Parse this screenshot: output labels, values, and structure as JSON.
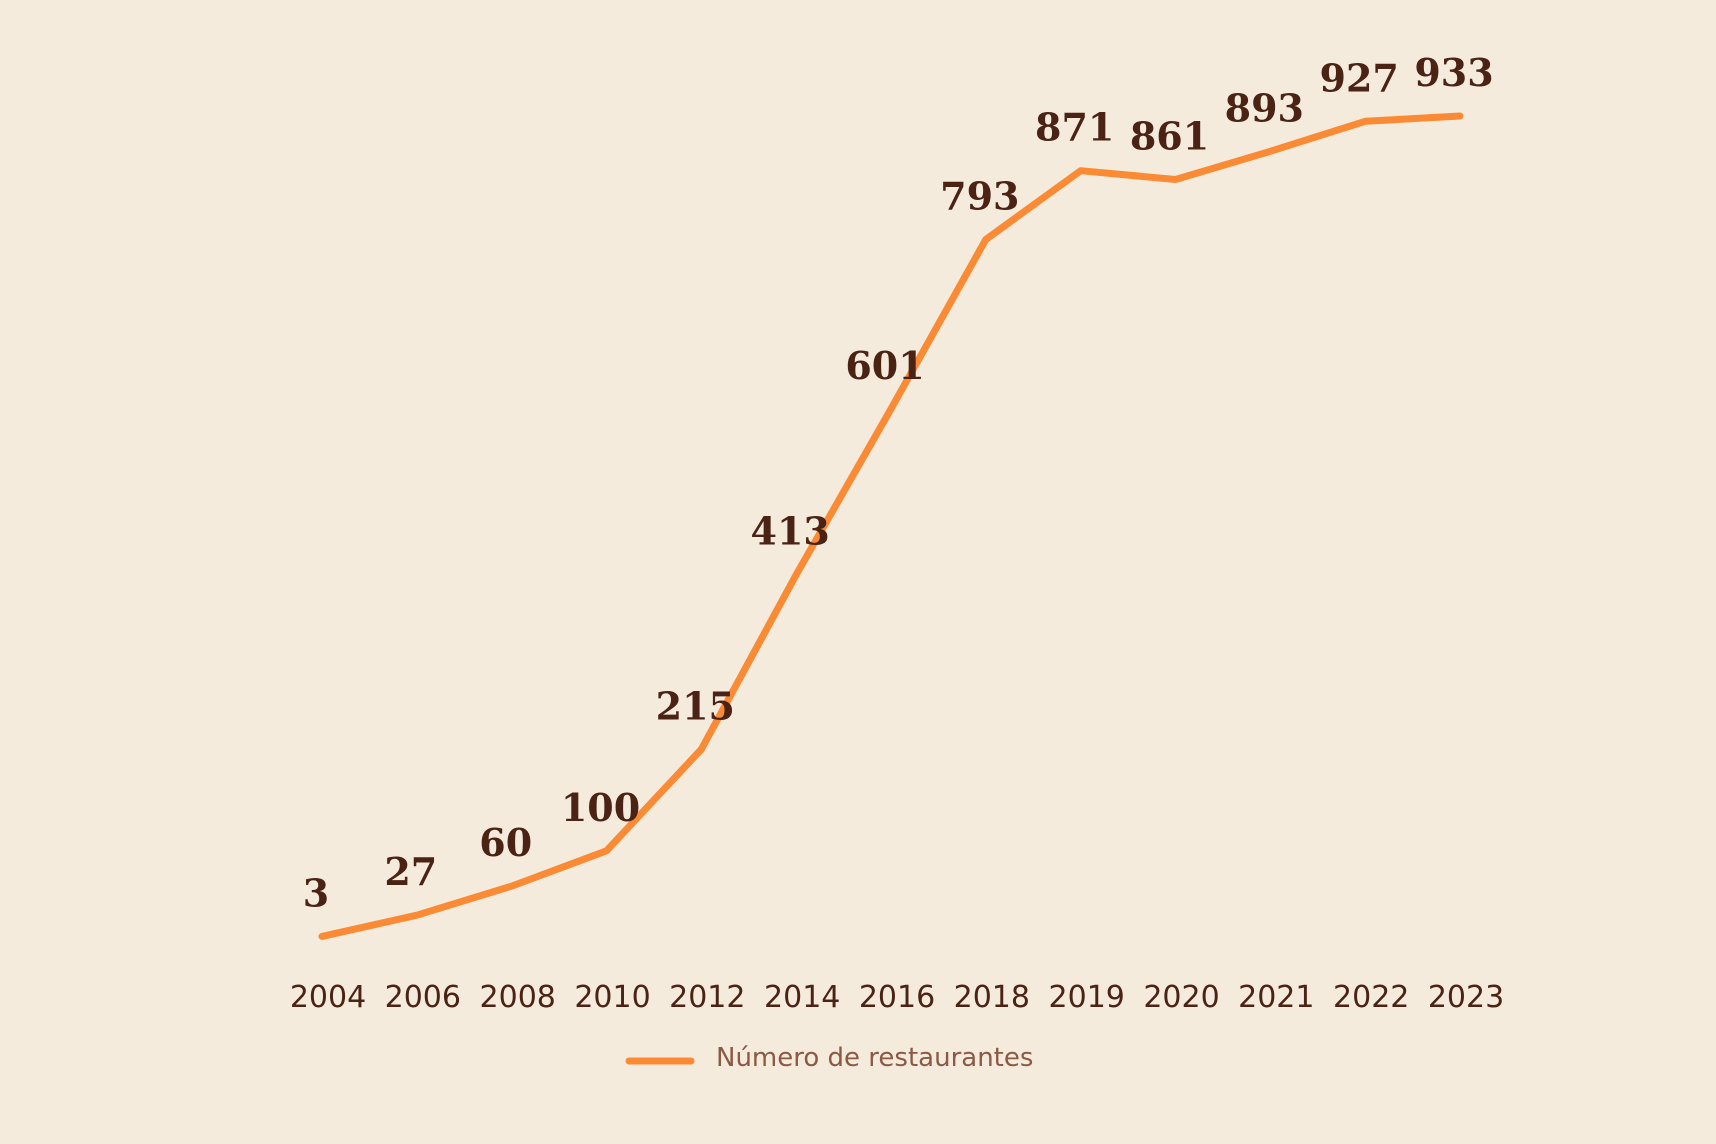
{
  "chart_data": {
    "type": "line",
    "categories": [
      "2004",
      "2006",
      "2008",
      "2010",
      "2012",
      "2014",
      "2016",
      "2018",
      "2019",
      "2020",
      "2021",
      "2022",
      "2023"
    ],
    "series": [
      {
        "name": "Número de restaurantes",
        "values": [
          3,
          27,
          60,
          100,
          215,
          413,
          601,
          793,
          871,
          861,
          893,
          927,
          933
        ],
        "color": "#fb8a35"
      }
    ],
    "title": "",
    "xlabel": "",
    "ylabel": "",
    "ylim": [
      0,
      933
    ],
    "grid": false,
    "legend_position": "bottom-center",
    "colors": {
      "background": "#f5ebdd",
      "line": "#fb8a35",
      "data_label": "#4a2315",
      "tick_label": "#4a2315",
      "legend_text": "#8a5a44"
    }
  }
}
